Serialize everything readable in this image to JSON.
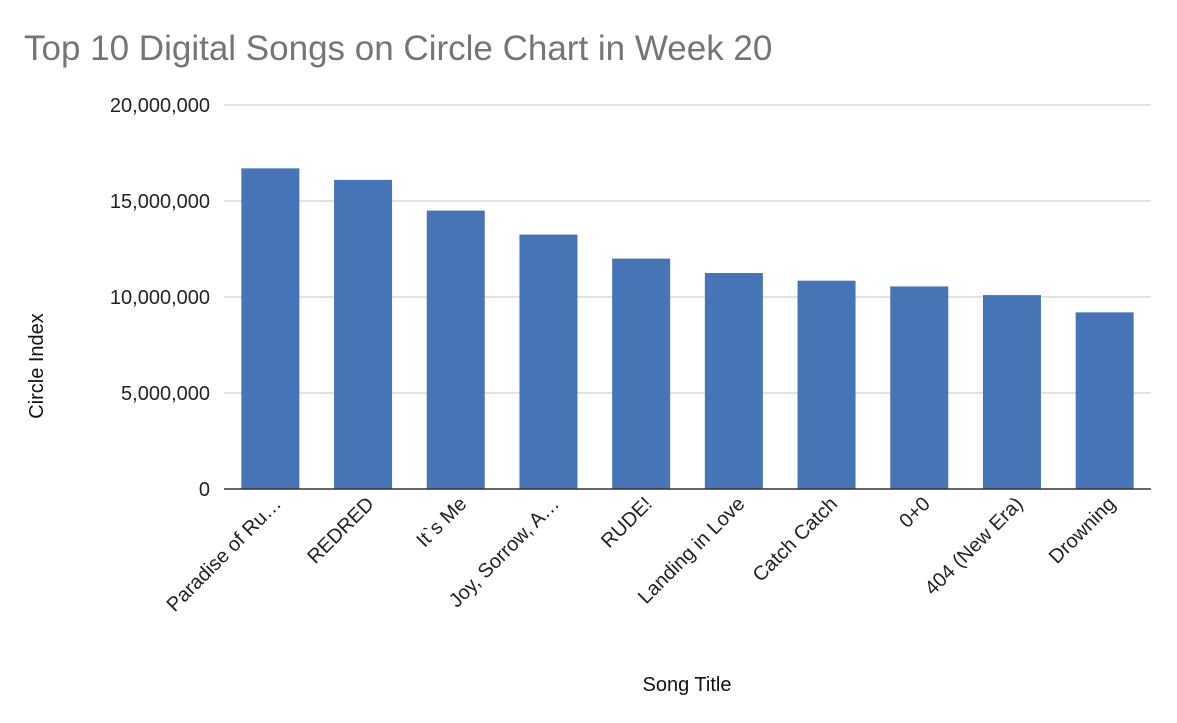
{
  "chart_data": {
    "type": "bar",
    "title": "Top 10 Digital Songs on Circle Chart in Week 20",
    "xlabel": "Song Title",
    "ylabel": "Circle Index",
    "categories": [
      "Paradise of Ru…",
      "REDRED",
      "It`s Me",
      "Joy, Sorrow, A…",
      "RUDE!",
      "Landing in Love",
      "Catch Catch",
      "0+0",
      "404 (New Era)",
      "Drowning"
    ],
    "values": [
      16700000,
      16100000,
      14500000,
      13250000,
      12000000,
      11250000,
      10850000,
      10550000,
      10100000,
      9200000
    ],
    "ylim": [
      0,
      20000000
    ],
    "yticks": [
      "0",
      "5,000,000",
      "10,000,000",
      "15,000,000",
      "20,000,000"
    ],
    "grid": true,
    "legend": "none",
    "bar_color": "#4674b6"
  }
}
